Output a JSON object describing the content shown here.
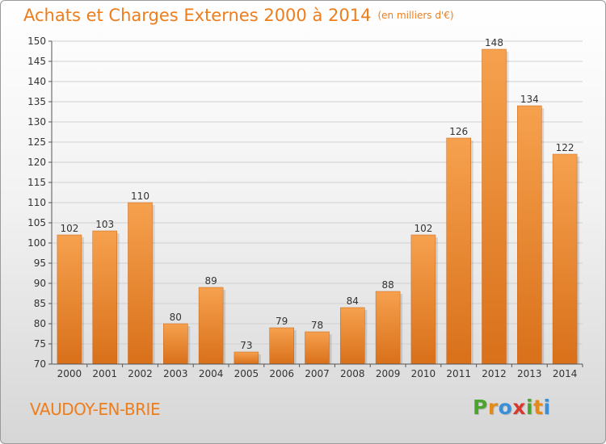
{
  "header": {
    "title": "Achats et Charges Externes 2000 à 2014",
    "unit": "(en milliers d'€)"
  },
  "footer": {
    "town": "VAUDOY-EN-BRIE",
    "brand_letters": [
      "P",
      "r",
      "o",
      "x",
      "i",
      "t",
      "i"
    ],
    "brand_colors": [
      "#4aa52f",
      "#e48a1a",
      "#3a8fd6",
      "#d63a2e",
      "#4aa52f",
      "#e48a1a",
      "#3a8fd6"
    ]
  },
  "colors": {
    "accent": "#ee7d1c",
    "bar_top": "#f6a14e",
    "bar_bottom": "#d9701a",
    "grid": "#d0d0d0",
    "axis": "#555555",
    "text": "#333333"
  },
  "chart_data": {
    "type": "bar",
    "categories": [
      "2000",
      "2001",
      "2002",
      "2003",
      "2004",
      "2005",
      "2006",
      "2007",
      "2008",
      "2009",
      "2010",
      "2011",
      "2012",
      "2013",
      "2014"
    ],
    "values": [
      102,
      103,
      110,
      80,
      89,
      73,
      79,
      78,
      84,
      88,
      102,
      126,
      148,
      134,
      122
    ],
    "ylim": [
      70,
      150
    ],
    "yticks": [
      70,
      75,
      80,
      85,
      90,
      95,
      100,
      105,
      110,
      115,
      120,
      125,
      130,
      135,
      140,
      145,
      150
    ],
    "grid": true,
    "data_labels": true
  }
}
